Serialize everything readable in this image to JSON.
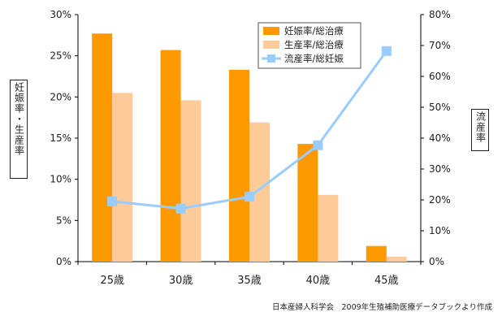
{
  "chart_data": {
    "type": "bar",
    "categories": [
      "25歳",
      "30歳",
      "35歳",
      "40歳",
      "45歳"
    ],
    "series": [
      {
        "name": "妊娠率/総治療",
        "type": "bar",
        "axis": "left",
        "color": "#ff9900",
        "values": [
          27.7,
          25.7,
          23.3,
          14.3,
          1.9
        ]
      },
      {
        "name": "生産率/総治療",
        "type": "bar",
        "axis": "left",
        "color": "#ffcc99",
        "values": [
          20.5,
          19.6,
          16.9,
          8.1,
          0.6
        ]
      },
      {
        "name": "流産率/総妊娠",
        "type": "line",
        "axis": "right",
        "color": "#99ccff",
        "values": [
          19.5,
          17.2,
          21.0,
          37.7,
          68.2
        ]
      }
    ],
    "left_axis": {
      "label": "妊娠率・生産率",
      "ylim": [
        0,
        30
      ],
      "ticks": [
        "0%",
        "5%",
        "10%",
        "15%",
        "20%",
        "25%",
        "30%"
      ]
    },
    "right_axis": {
      "label": "流産率",
      "ylim": [
        0,
        80
      ],
      "ticks": [
        "0%",
        "10%",
        "20%",
        "30%",
        "40%",
        "50%",
        "60%",
        "70%",
        "80%"
      ]
    },
    "grid": false,
    "legend_position": "top-right"
  },
  "footer": {
    "source": "日本産婦人科学会　2009年生殖補助医療データブックより作成"
  }
}
